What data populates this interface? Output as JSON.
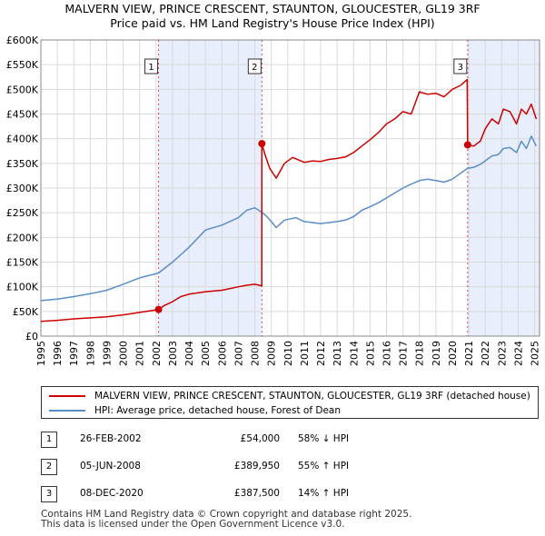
{
  "title_line1": "MALVERN VIEW, PRINCE CRESCENT, STAUNTON, GLOUCESTER, GL19 3RF",
  "title_line2": "Price paid vs. HM Land Registry's House Price Index (HPI)",
  "colors": {
    "property": "#cc0000",
    "hpi": "#5b8ec7",
    "shade": "#e8eefb",
    "vline": "#cc0000"
  },
  "legend": {
    "property": "MALVERN VIEW, PRINCE CRESCENT, STAUNTON, GLOUCESTER, GL19 3RF (detached house)",
    "hpi": "HPI: Average price, detached house, Forest of Dean"
  },
  "sales": [
    {
      "num": "1",
      "date": "26-FEB-2002",
      "price": "£54,000",
      "hpi": "58% ↓ HPI"
    },
    {
      "num": "2",
      "date": "05-JUN-2008",
      "price": "£389,950",
      "hpi": "55% ↑ HPI"
    },
    {
      "num": "3",
      "date": "08-DEC-2020",
      "price": "£387,500",
      "hpi": "14% ↑ HPI"
    }
  ],
  "footer": {
    "line1": "Contains HM Land Registry data © Crown copyright and database right 2025.",
    "line2": "This data is licensed under the Open Government Licence v3.0."
  },
  "chart_data": {
    "type": "line",
    "title": "MALVERN VIEW, PRINCE CRESCENT, STAUNTON, GLOUCESTER, GL19 3RF — Price paid vs. HM Land Registry's House Price Index (HPI)",
    "xlabel": "",
    "ylabel": "",
    "xlim": [
      1995,
      2025.3
    ],
    "ylim": [
      0,
      600000
    ],
    "x_ticks": [
      "1995",
      "1996",
      "1997",
      "1998",
      "1999",
      "2000",
      "2001",
      "2002",
      "2003",
      "2004",
      "2005",
      "2006",
      "2007",
      "2008",
      "2009",
      "2010",
      "2011",
      "2012",
      "2013",
      "2014",
      "2015",
      "2016",
      "2017",
      "2018",
      "2019",
      "2020",
      "2021",
      "2022",
      "2023",
      "2024",
      "2025"
    ],
    "y_ticks": [
      {
        "value": 0,
        "label": "£0"
      },
      {
        "value": 50000,
        "label": "£50K"
      },
      {
        "value": 100000,
        "label": "£100K"
      },
      {
        "value": 150000,
        "label": "£150K"
      },
      {
        "value": 200000,
        "label": "£200K"
      },
      {
        "value": 250000,
        "label": "£250K"
      },
      {
        "value": 300000,
        "label": "£300K"
      },
      {
        "value": 350000,
        "label": "£350K"
      },
      {
        "value": 400000,
        "label": "£400K"
      },
      {
        "value": 450000,
        "label": "£450K"
      },
      {
        "value": 500000,
        "label": "£500K"
      },
      {
        "value": 550000,
        "label": "£550K"
      },
      {
        "value": 600000,
        "label": "£600K"
      }
    ],
    "sale_points": [
      {
        "label": "1",
        "x": 2002.15,
        "y": 54000
      },
      {
        "label": "2",
        "x": 2008.43,
        "y": 389950
      },
      {
        "label": "3",
        "x": 2020.93,
        "y": 387500
      }
    ],
    "shaded_regions": [
      [
        2002.15,
        2008.43
      ],
      [
        2020.93,
        2025.3
      ]
    ],
    "series": [
      {
        "name": "MALVERN VIEW, PRINCE CRESCENT, STAUNTON, GLOUCESTER, GL19 3RF (detached house)",
        "x": [
          1995.0,
          1996.0,
          1997.0,
          1998.0,
          1999.0,
          2000.0,
          2001.0,
          2002.15,
          2002.5,
          2003.0,
          2003.5,
          2004.0,
          2005.0,
          2006.0,
          2007.0,
          2007.5,
          2008.0,
          2008.42,
          2008.43,
          2008.6,
          2008.9,
          2009.3,
          2009.8,
          2010.3,
          2011.0,
          2011.5,
          2012.0,
          2012.5,
          2013.0,
          2013.5,
          2014.0,
          2014.5,
          2015.0,
          2015.5,
          2016.0,
          2016.5,
          2017.0,
          2017.5,
          2018.0,
          2018.5,
          2019.0,
          2019.5,
          2020.0,
          2020.5,
          2020.9,
          2020.93,
          2021.3,
          2021.7,
          2022.0,
          2022.4,
          2022.8,
          2023.1,
          2023.5,
          2023.9,
          2024.2,
          2024.5,
          2024.8,
          2025.1
        ],
        "values": [
          30000,
          32000,
          35000,
          37000,
          39000,
          43000,
          48000,
          54000,
          62000,
          70000,
          80000,
          85000,
          90000,
          93000,
          100000,
          103000,
          105000,
          102000,
          389950,
          370000,
          340000,
          320000,
          350000,
          362000,
          352000,
          355000,
          354000,
          358000,
          360000,
          363000,
          372000,
          385000,
          398000,
          412000,
          430000,
          440000,
          455000,
          450000,
          495000,
          490000,
          492000,
          485000,
          500000,
          508000,
          520000,
          387500,
          385000,
          395000,
          420000,
          440000,
          430000,
          460000,
          455000,
          430000,
          460000,
          450000,
          470000,
          440000
        ]
      },
      {
        "name": "HPI: Average price, detached house, Forest of Dean",
        "x": [
          1995.0,
          1996.0,
          1997.0,
          1998.0,
          1999.0,
          2000.0,
          2001.0,
          2002.15,
          2003.0,
          2004.0,
          2005.0,
          2006.0,
          2007.0,
          2007.5,
          2008.0,
          2008.43,
          2008.8,
          2009.3,
          2009.8,
          2010.5,
          2011.0,
          2011.5,
          2012.0,
          2012.5,
          2013.0,
          2013.5,
          2014.0,
          2014.5,
          2015.0,
          2015.5,
          2016.0,
          2016.5,
          2017.0,
          2017.5,
          2018.0,
          2018.5,
          2019.0,
          2019.5,
          2020.0,
          2020.5,
          2020.93,
          2021.3,
          2021.7,
          2022.0,
          2022.4,
          2022.8,
          2023.1,
          2023.5,
          2023.9,
          2024.2,
          2024.5,
          2024.8,
          2025.1
        ],
        "values": [
          72000,
          75000,
          80000,
          86000,
          93000,
          105000,
          118000,
          128000,
          150000,
          180000,
          215000,
          225000,
          240000,
          255000,
          260000,
          251000,
          240000,
          220000,
          235000,
          240000,
          232000,
          230000,
          228000,
          230000,
          232000,
          235000,
          242000,
          255000,
          262000,
          270000,
          280000,
          290000,
          300000,
          308000,
          315000,
          318000,
          315000,
          312000,
          318000,
          330000,
          340000,
          342000,
          348000,
          355000,
          365000,
          368000,
          380000,
          382000,
          372000,
          395000,
          380000,
          405000,
          385000
        ]
      }
    ]
  }
}
